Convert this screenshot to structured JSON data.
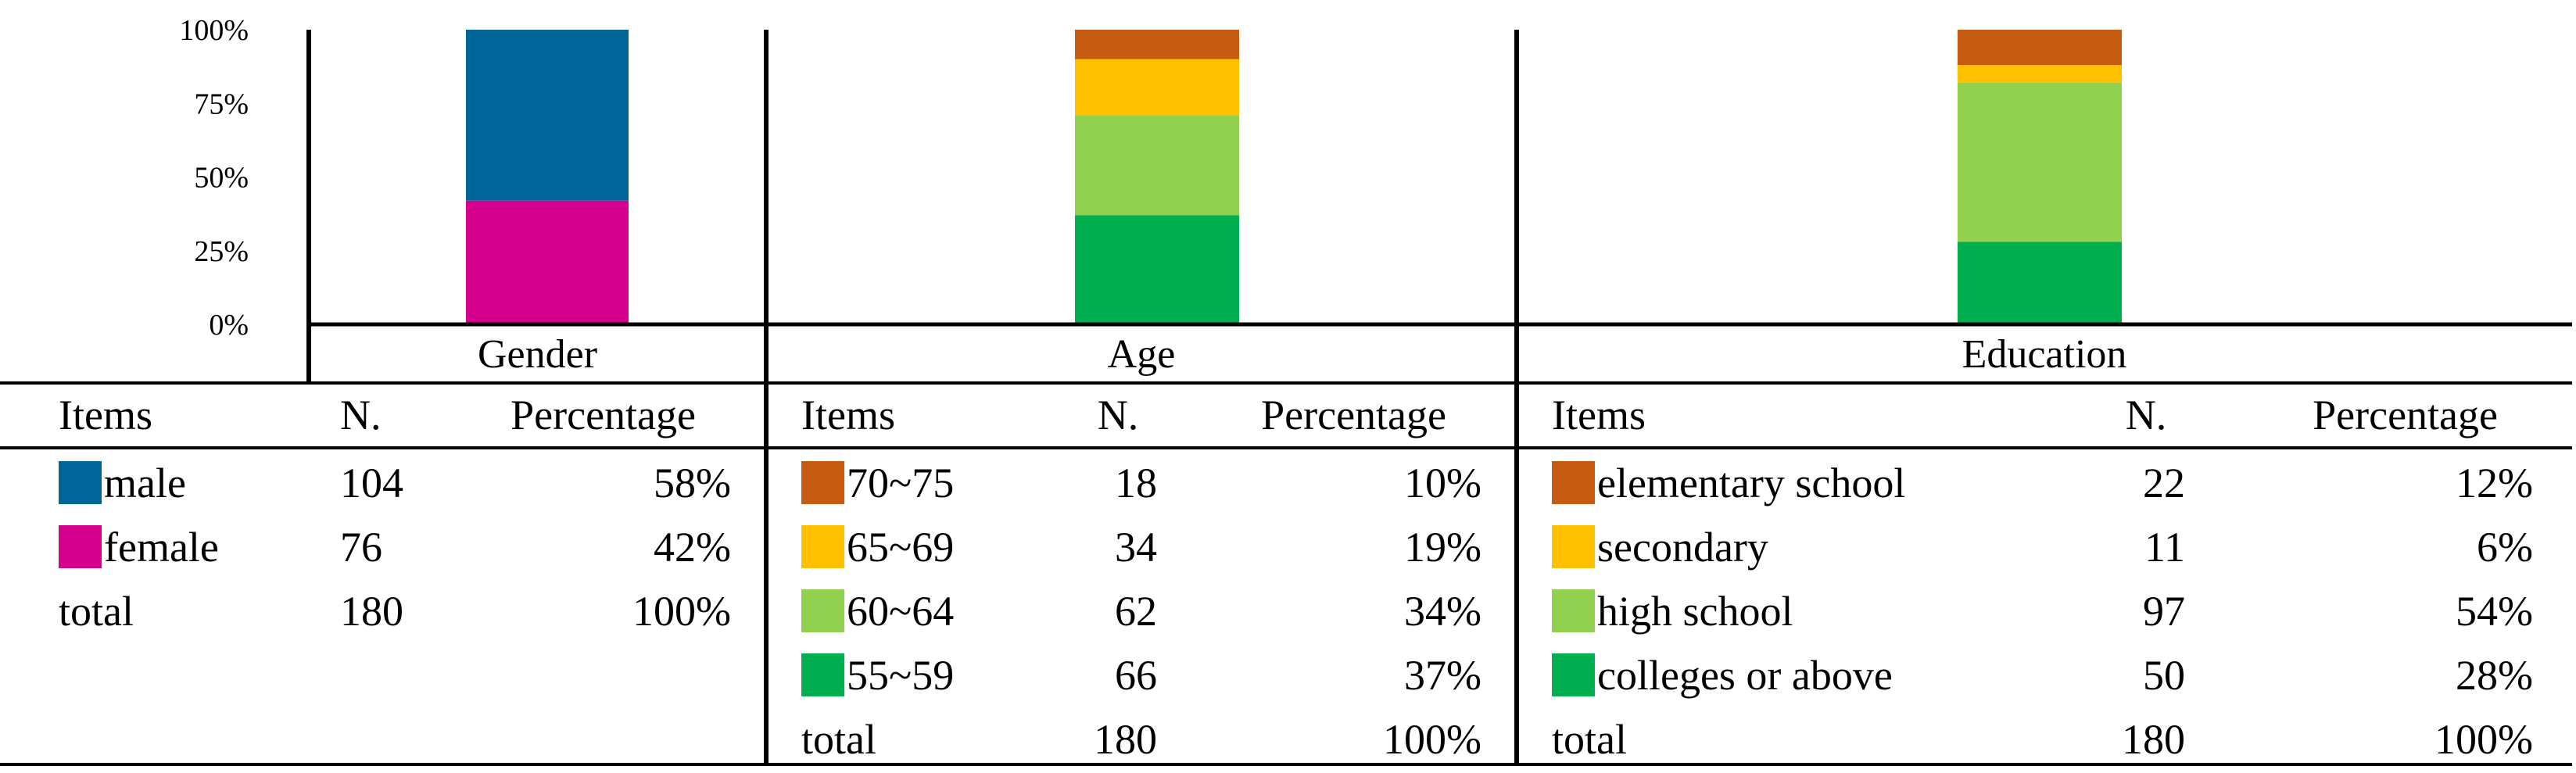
{
  "chart_data": {
    "type": "bar",
    "stacked": true,
    "ylim": [
      0,
      100
    ],
    "yticks": [
      "0%",
      "25%",
      "50%",
      "75%",
      "100%"
    ],
    "grid": false,
    "groups": [
      {
        "name": "Gender",
        "headers": [
          "Items",
          "N.",
          "Percentage"
        ],
        "items": [
          {
            "label": "male",
            "n": "104",
            "pct": "58%",
            "value": 58,
            "color": "#006699"
          },
          {
            "label": "female",
            "n": "76",
            "pct": "42%",
            "value": 42,
            "color": "#d6008f"
          }
        ],
        "total": {
          "label": "total",
          "n": "180",
          "pct": "100%"
        }
      },
      {
        "name": "Age",
        "headers": [
          "Items",
          "N.",
          "Percentage"
        ],
        "items": [
          {
            "label": "70~75",
            "n": "18",
            "pct": "10%",
            "value": 10,
            "color": "#c55a11"
          },
          {
            "label": "65~69",
            "n": "34",
            "pct": "19%",
            "value": 19,
            "color": "#ffc000"
          },
          {
            "label": "60~64",
            "n": "62",
            "pct": "34%",
            "value": 34,
            "color": "#92d050"
          },
          {
            "label": "55~59",
            "n": "66",
            "pct": "37%",
            "value": 37,
            "color": "#00b050"
          }
        ],
        "total": {
          "label": "total",
          "n": "180",
          "pct": "100%"
        }
      },
      {
        "name": "Education",
        "headers": [
          "Items",
          "N.",
          "Percentage"
        ],
        "items": [
          {
            "label": "elementary school",
            "n": "22",
            "pct": "12%",
            "value": 12,
            "color": "#c55a11"
          },
          {
            "label": "secondary",
            "n": "11",
            "pct": "6%",
            "value": 6,
            "color": "#ffc000"
          },
          {
            "label": "high school",
            "n": "97",
            "pct": "54%",
            "value": 54,
            "color": "#92d050"
          },
          {
            "label": "colleges or above",
            "n": "50",
            "pct": "28%",
            "value": 28,
            "color": "#00b050"
          }
        ],
        "total": {
          "label": "total",
          "n": "180",
          "pct": "100%"
        }
      }
    ]
  }
}
